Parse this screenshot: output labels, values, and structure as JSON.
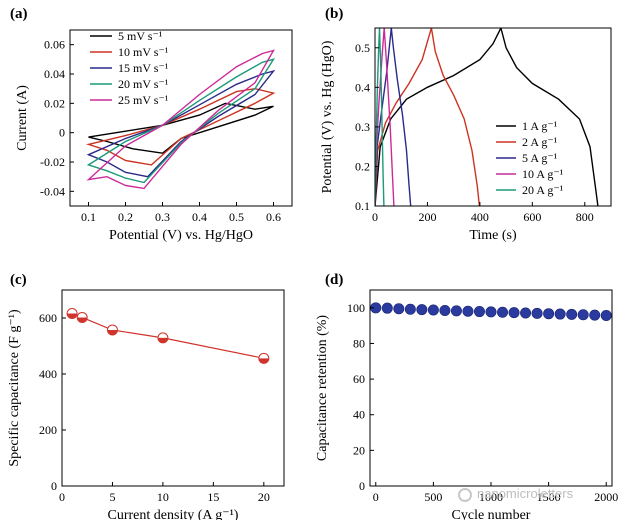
{
  "watermark": "nanomicroletters",
  "chart_data": [
    {
      "panel": "(a)",
      "type": "line",
      "xlabel": "Potential (V) vs. Hg/HgO",
      "ylabel": "Current (A)",
      "xlim": [
        0.05,
        0.65
      ],
      "ylim": [
        -0.05,
        0.07
      ],
      "xticks": [
        0.1,
        0.2,
        0.3,
        0.4,
        0.5,
        0.6
      ],
      "yticks": [
        -0.04,
        -0.02,
        0,
        0.02,
        0.04,
        0.06
      ],
      "legend_position": "top-left",
      "series": [
        {
          "name": "5 mV s⁻¹",
          "color": "#000000",
          "x": [
            0.1,
            0.2,
            0.3,
            0.4,
            0.47,
            0.55,
            0.6,
            0.55,
            0.45,
            0.35,
            0.3,
            0.22,
            0.15,
            0.1
          ],
          "y": [
            -0.003,
            0.001,
            0.005,
            0.012,
            0.02,
            0.016,
            0.018,
            0.012,
            0.004,
            -0.004,
            -0.014,
            -0.011,
            -0.006,
            -0.003
          ]
        },
        {
          "name": "10 mV s⁻¹",
          "color": "#cc3322",
          "x": [
            0.1,
            0.2,
            0.3,
            0.4,
            0.5,
            0.55,
            0.6,
            0.55,
            0.45,
            0.35,
            0.27,
            0.2,
            0.15,
            0.1
          ],
          "y": [
            -0.008,
            -0.002,
            0.005,
            0.016,
            0.028,
            0.03,
            0.027,
            0.02,
            0.008,
            -0.004,
            -0.022,
            -0.019,
            -0.012,
            -0.008
          ]
        },
        {
          "name": "15 mV s⁻¹",
          "color": "#2a2a8a",
          "x": [
            0.1,
            0.2,
            0.3,
            0.4,
            0.5,
            0.57,
            0.6,
            0.55,
            0.45,
            0.35,
            0.26,
            0.2,
            0.15,
            0.1
          ],
          "y": [
            -0.015,
            -0.004,
            0.005,
            0.019,
            0.033,
            0.04,
            0.042,
            0.026,
            0.011,
            -0.006,
            -0.03,
            -0.027,
            -0.02,
            -0.015
          ]
        },
        {
          "name": "20 mV s⁻¹",
          "color": "#1a9a7a",
          "x": [
            0.1,
            0.2,
            0.3,
            0.4,
            0.5,
            0.57,
            0.6,
            0.55,
            0.45,
            0.35,
            0.25,
            0.2,
            0.15,
            0.1
          ],
          "y": [
            -0.022,
            -0.006,
            0.005,
            0.022,
            0.038,
            0.048,
            0.05,
            0.03,
            0.013,
            -0.007,
            -0.034,
            -0.031,
            -0.026,
            -0.022
          ]
        },
        {
          "name": "25 mV s⁻¹",
          "color": "#cc2a99",
          "x": [
            0.1,
            0.2,
            0.3,
            0.4,
            0.5,
            0.57,
            0.6,
            0.55,
            0.45,
            0.35,
            0.25,
            0.2,
            0.15,
            0.1
          ],
          "y": [
            -0.032,
            -0.009,
            0.005,
            0.026,
            0.045,
            0.054,
            0.056,
            0.034,
            0.015,
            -0.008,
            -0.038,
            -0.036,
            -0.03,
            -0.032
          ]
        }
      ]
    },
    {
      "panel": "(b)",
      "type": "line",
      "xlabel": "Time (s)",
      "ylabel": "Potential (V) vs. Hg (HgO)",
      "xlim": [
        0,
        900
      ],
      "ylim": [
        0.1,
        0.55
      ],
      "xticks": [
        0,
        200,
        400,
        600,
        800
      ],
      "yticks": [
        0.1,
        0.2,
        0.3,
        0.4,
        0.5
      ],
      "legend_position": "bottom-right",
      "series": [
        {
          "name": "1 A g⁻¹",
          "color": "#000000",
          "x": [
            0,
            20,
            60,
            120,
            200,
            300,
            400,
            450,
            480,
            500,
            540,
            600,
            700,
            780,
            820,
            840,
            850
          ],
          "y": [
            0.1,
            0.25,
            0.32,
            0.37,
            0.4,
            0.43,
            0.47,
            0.51,
            0.55,
            0.5,
            0.45,
            0.41,
            0.37,
            0.32,
            0.25,
            0.15,
            0.1
          ]
        },
        {
          "name": "2 A g⁻¹",
          "color": "#cc3322",
          "x": [
            0,
            10,
            40,
            80,
            130,
            180,
            215,
            230,
            260,
            300,
            340,
            370,
            390,
            398
          ],
          "y": [
            0.1,
            0.24,
            0.31,
            0.36,
            0.41,
            0.47,
            0.55,
            0.49,
            0.43,
            0.38,
            0.32,
            0.24,
            0.15,
            0.1
          ]
        },
        {
          "name": "5 A g⁻¹",
          "color": "#2a2a8a",
          "x": [
            0,
            8,
            25,
            45,
            62,
            70,
            85,
            105,
            120,
            130,
            136
          ],
          "y": [
            0.1,
            0.25,
            0.34,
            0.44,
            0.55,
            0.5,
            0.42,
            0.33,
            0.24,
            0.15,
            0.1
          ]
        },
        {
          "name": "10 A g⁻¹",
          "color": "#cc2a99",
          "x": [
            0,
            5,
            15,
            27,
            35,
            45,
            58,
            67,
            72
          ],
          "y": [
            0.1,
            0.24,
            0.36,
            0.48,
            0.55,
            0.45,
            0.3,
            0.17,
            0.1
          ]
        },
        {
          "name": "20 A g⁻¹",
          "color": "#1a9a7a",
          "x": [
            0,
            4,
            9,
            14,
            17,
            22,
            27,
            31,
            34
          ],
          "y": [
            0.1,
            0.25,
            0.4,
            0.5,
            0.55,
            0.45,
            0.3,
            0.18,
            0.1
          ]
        }
      ]
    },
    {
      "panel": "(c)",
      "type": "scatter",
      "xlabel": "Current density (A g⁻¹)",
      "ylabel": "Specific capacitance (F g⁻¹)",
      "xlim": [
        0,
        22
      ],
      "ylim": [
        0,
        700
      ],
      "xticks": [
        0,
        5,
        10,
        15,
        20
      ],
      "yticks": [
        0,
        200,
        400,
        600
      ],
      "grid": false,
      "series": [
        {
          "color": "#d0342c",
          "x": [
            1,
            2,
            5,
            10,
            20
          ],
          "y": [
            616,
            602,
            557,
            529,
            456
          ]
        }
      ]
    },
    {
      "panel": "(d)",
      "type": "scatter",
      "xlabel": "Cycle number",
      "ylabel": "Capacitance retention (%)",
      "xlim": [
        -50,
        2050
      ],
      "ylim": [
        0,
        110
      ],
      "xticks": [
        0,
        500,
        1000,
        1500,
        2000
      ],
      "yticks": [
        0,
        20,
        40,
        60,
        80,
        100
      ],
      "grid": false,
      "series": [
        {
          "color": "#2b3a9e",
          "x": [
            0,
            100,
            200,
            300,
            400,
            500,
            600,
            700,
            800,
            900,
            1000,
            1100,
            1200,
            1300,
            1400,
            1500,
            1600,
            1700,
            1800,
            1900,
            2000
          ],
          "y": [
            100,
            99.8,
            99.5,
            99.2,
            99,
            98.8,
            98.5,
            98.3,
            98.1,
            97.9,
            97.7,
            97.5,
            97.3,
            97.1,
            96.9,
            96.7,
            96.5,
            96.3,
            96.1,
            95.9,
            95.7
          ]
        }
      ]
    }
  ]
}
